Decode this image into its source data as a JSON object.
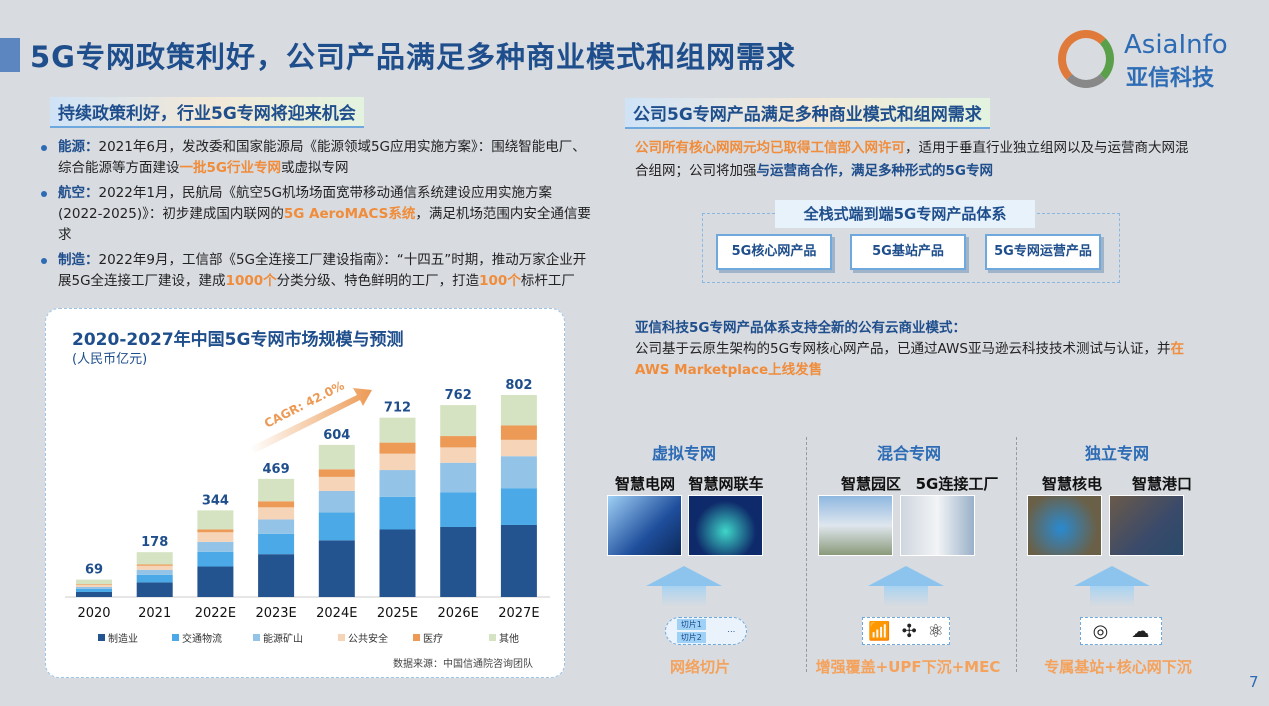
{
  "title": "5G专网政策利好，公司产品满足多种商业模式和组网需求",
  "logo": {
    "en": "AsiaInfo",
    "cn": "亚信科技"
  },
  "left": {
    "subtitle": "持续政策利好，行业5G专网将迎来机会",
    "bullets": [
      {
        "key": "能源：",
        "parts": [
          "2021年6月，发改委和国家能源局《能源领域5G应用实施方案》：围绕智能电厂、综合能源等方面建设",
          "一批5G行业专网",
          "或虚拟专网"
        ]
      },
      {
        "key": "航空：",
        "parts": [
          "2022年1月，民航局《航空5G机场场面宽带移动通信系统建设应用实施方案(2022-2025)》：初步建成国内联网的",
          "5G AeroMACS系统",
          "，满足机场范围内安全通信要求"
        ]
      },
      {
        "key": "制造：",
        "parts": [
          "2022年9月，工信部《5G全连接工厂建设指南》：“十四五”时期，推动万家企业开展5G全连接工厂建设，建成",
          "1000个",
          "分类分级、特色鲜明的工厂，打造",
          "100个",
          "标杆工厂"
        ]
      }
    ]
  },
  "chart_data": {
    "type": "bar",
    "stacked": true,
    "title": "2020-2027年中国5G专网市场规模与预测",
    "unit": "(人民币亿元)",
    "categories": [
      "2020",
      "2021",
      "2022E",
      "2023E",
      "2024E",
      "2025E",
      "2026E",
      "2027E"
    ],
    "totals": [
      69,
      178,
      344,
      469,
      604,
      712,
      762,
      802
    ],
    "series": [
      {
        "name": "制造业",
        "color": "#23548f",
        "values": [
          20,
          58,
          121,
          170,
          225,
          268,
          278,
          286
        ]
      },
      {
        "name": "交通物流",
        "color": "#4aa9e6",
        "values": [
          12,
          30,
          58,
          81,
          111,
          130,
          138,
          146
        ]
      },
      {
        "name": "能源矿山",
        "color": "#93c3e6",
        "values": [
          8,
          20,
          40,
          57,
          85,
          106,
          117,
          127
        ]
      },
      {
        "name": "公共安全",
        "color": "#f6d4b8",
        "values": [
          8,
          16,
          38,
          48,
          56,
          65,
          61,
          65
        ]
      },
      {
        "name": "医疗",
        "color": "#ec9a55",
        "values": [
          3,
          5,
          11,
          24,
          30,
          44,
          45,
          57
        ]
      },
      {
        "name": "其他",
        "color": "#d6e3c3",
        "values": [
          18,
          49,
          76,
          89,
          97,
          99,
          123,
          121
        ]
      }
    ],
    "ylim": [
      0,
      802
    ],
    "annotation": "CAGR: 42.0%",
    "source": "数据来源：中国信通院咨询团队"
  },
  "right": {
    "subtitle": "公司5G专网产品满足多种商业模式和组网需求",
    "intro": [
      "公司所有核心网网元均已取得工信部入网许可",
      "，适用于垂直行业独立组网以及与运营商大网混合组网；公司将加强",
      "与运营商合作，满足多种形式的5G专网"
    ],
    "stack_title": "全栈式端到端5G专网产品体系",
    "products": [
      "5G核心网产品",
      "5G基站产品",
      "5G专网运营产品"
    ],
    "cloud_title": "亚信科技5G专网产品体系支持全新的公有云商业模式：",
    "cloud_text": [
      "公司基于云原生架构的5G专网核心网产品，已通过AWS亚马逊云科技技术测试与认证，并",
      "在AWS Marketplace上线发售"
    ],
    "columns": [
      {
        "title": "虚拟专网",
        "items": [
          "智慧电网",
          "智慧网联车"
        ],
        "slices": [
          "切片1",
          "切片2"
        ],
        "bottom": "网络切片",
        "colors": [
          "#3a6fb5",
          "#1a3a7a"
        ]
      },
      {
        "title": "混合专网",
        "items": [
          "智慧园区",
          "5G连接工厂"
        ],
        "icons": [
          "wifi-icon",
          "network-node-icon",
          "atom-icon"
        ],
        "bottom": "增强覆盖+UPF下沉+MEC",
        "colors": [
          "#9ab8d6",
          "#dfe3e8"
        ]
      },
      {
        "title": "独立专网",
        "items": [
          "智慧核电",
          "智慧港口"
        ],
        "icons": [
          "antenna-icon",
          "cloud-network-icon"
        ],
        "bottom": "专属基站+核心网下沉",
        "colors": [
          "#2a6aa8",
          "#4a5a6a"
        ]
      }
    ]
  },
  "page_number": "7"
}
